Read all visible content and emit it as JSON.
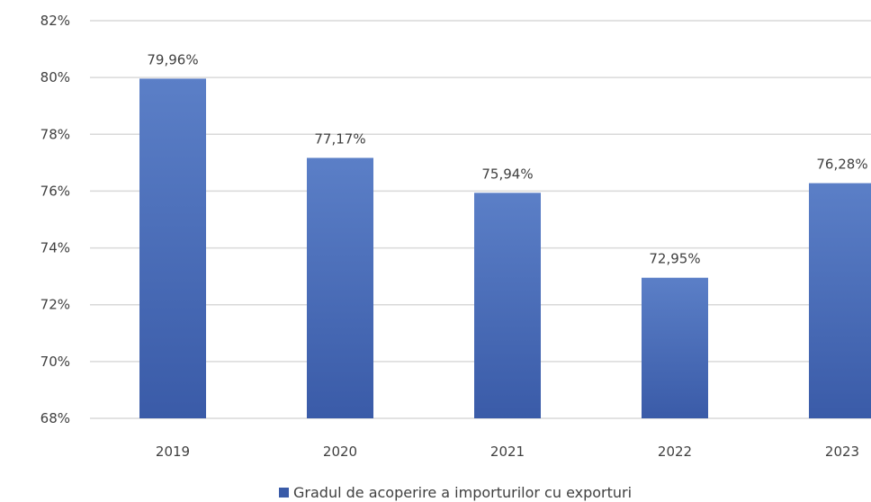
{
  "chart_data": {
    "type": "bar",
    "categories": [
      "2019",
      "2020",
      "2021",
      "2022",
      "2023"
    ],
    "series": [
      {
        "name": "Gradul de acoperire a importurilor cu exporturi",
        "values": [
          79.96,
          77.17,
          75.94,
          72.95,
          76.28
        ],
        "data_labels": [
          "79,96%",
          "77,17%",
          "75,94%",
          "72,95%",
          "76,28%"
        ],
        "color_top": "#5b7fc7",
        "color_bottom": "#3a5ba8"
      }
    ],
    "y_ticks": [
      {
        "value": 68,
        "label": "68%"
      },
      {
        "value": 70,
        "label": "70%"
      },
      {
        "value": 72,
        "label": "72%"
      },
      {
        "value": 74,
        "label": "74%"
      },
      {
        "value": 76,
        "label": "76%"
      },
      {
        "value": 78,
        "label": "78%"
      },
      {
        "value": 80,
        "label": "80%"
      },
      {
        "value": 82,
        "label": "82%"
      }
    ],
    "ylim": [
      68,
      82
    ],
    "grid": true,
    "legend_position": "bottom-center",
    "title": "",
    "xlabel": "",
    "ylabel": ""
  }
}
